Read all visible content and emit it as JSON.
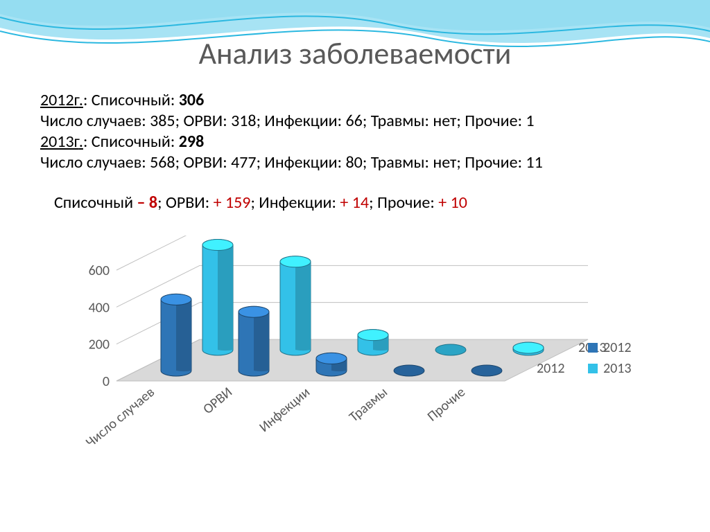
{
  "title": "Анализ заболеваемости",
  "text": {
    "y2012_label": "2012г",
    "y2013_label": "2013г",
    "list_label": "Списочный",
    "cases_label": "Число случаев",
    "orvi_label": "ОРВИ",
    "inf_label": "Инфекции",
    "inj_label": "Травмы",
    "other_label": "Прочие",
    "none": "нет",
    "list_2012": "306",
    "cases_2012": "385",
    "orvi_2012": "318",
    "inf_2012": "66",
    "inj_2012": "нет",
    "other_2012": "1",
    "list_2013": "298",
    "cases_2013": "568",
    "orvi_2013": "477",
    "inf_2013": "80",
    "inj_2013": "нет",
    "other_2013": "11",
    "d_list": "– 8",
    "d_orvi": "+ 159",
    "d_inf": "+ 14",
    "d_other": "+ 10"
  },
  "chart": {
    "type": "3d-cylinder-bar-grouped",
    "categories": [
      "Число случаев",
      "ОРВИ",
      "Инфекции",
      "Травмы",
      "Прочие"
    ],
    "series": [
      {
        "name": "2012",
        "color": "#2e75b6",
        "values": [
          385,
          318,
          66,
          0,
          1
        ]
      },
      {
        "name": "2013",
        "color": "#33c1e8",
        "values": [
          568,
          477,
          80,
          0,
          11
        ]
      }
    ],
    "yticks": [
      0,
      200,
      400,
      600
    ],
    "ylim": [
      0,
      600
    ],
    "floor_color": "#d9d9d9",
    "floor_stroke": "#bfbfbf",
    "grid_color": "#bfbfbf",
    "axis_label_color": "#595959",
    "background": "#ffffff",
    "legend": [
      "2012",
      "2013"
    ],
    "legend_colors": [
      "#2e75b6",
      "#33c1e8"
    ],
    "series_depth_labels": [
      "2013",
      "2012"
    ],
    "label_fontsize": 20,
    "cyl_radius_x": 22,
    "cyl_radius_y": 8,
    "depth_dx": 60,
    "depth_dy": 30
  },
  "wave": {
    "stroke": "#2bb8e0",
    "fill1": "#bfe9f5",
    "fill2": "#6dd0ec"
  }
}
